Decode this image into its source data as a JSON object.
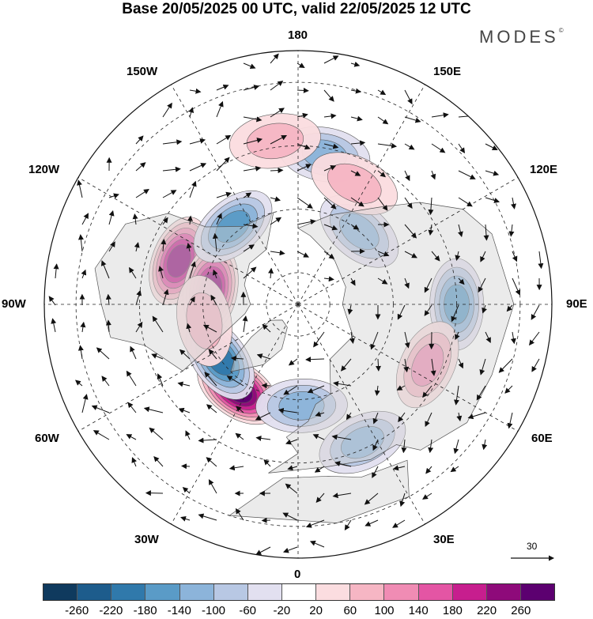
{
  "title": "Base 20/05/2025 00 UTC, valid 22/05/2025 12 UTC",
  "brand": "MODES",
  "brand_mark": "©",
  "longitude_labels": {
    "lon_180": "180",
    "lon_150e": "150E",
    "lon_120e": "120E",
    "lon_90e": "90E",
    "lon_60e": "60E",
    "lon_30e": "30E",
    "lon_0": "0",
    "lon_30w": "30W",
    "lon_60w": "60W",
    "lon_90w": "90W",
    "lon_120w": "120W",
    "lon_150w": "150W"
  },
  "reference_vector": "30",
  "colorbar": {
    "colors": [
      "#0f3a5e",
      "#1d5c8c",
      "#3079ab",
      "#5a9bc7",
      "#8cb4da",
      "#b8c8e4",
      "#e2e0f0",
      "#ffffff",
      "#fbdde0",
      "#f6b6c4",
      "#f08cb4",
      "#e455a4",
      "#c71e8e",
      "#8e0a7a",
      "#5c0070"
    ],
    "ticks": [
      "-260",
      "-220",
      "-180",
      "-140",
      "-100",
      "-60",
      "-20",
      "20",
      "60",
      "100",
      "140",
      "180",
      "220",
      "260"
    ]
  },
  "anomalies": [
    {
      "name": "pos-alaska-gulf",
      "lon": -110,
      "lat": 50,
      "value": 240
    },
    {
      "name": "pos-alaska-north",
      "lon": -100,
      "lat": 62,
      "value": 230
    },
    {
      "name": "pos-north-atlantic",
      "lon": -35,
      "lat": 57,
      "value": 250
    },
    {
      "name": "neg-labrador",
      "lon": -55,
      "lat": 60,
      "value": -180
    },
    {
      "name": "neg-east-pacific",
      "lon": -140,
      "lat": 58,
      "value": -150
    },
    {
      "name": "neg-bering",
      "lon": 170,
      "lat": 42,
      "value": -90
    },
    {
      "name": "pos-date-line",
      "lon": -172,
      "lat": 38,
      "value": 80
    },
    {
      "name": "neg-north-sea",
      "lon": 2,
      "lat": 58,
      "value": -110
    },
    {
      "name": "neg-mediterranean",
      "lon": 25,
      "lat": 42,
      "value": -120
    },
    {
      "name": "neg-central-asia",
      "lon": 90,
      "lat": 40,
      "value": -140
    },
    {
      "name": "pos-central-asia",
      "lon": 65,
      "lat": 45,
      "value": 90
    },
    {
      "name": "neg-east-siberia",
      "lon": 140,
      "lat": 60,
      "value": -110
    },
    {
      "name": "pos-north-pacific",
      "lon": 155,
      "lat": 48,
      "value": 70
    },
    {
      "name": "pos-hudson",
      "lon": -80,
      "lat": 60,
      "value": 50
    }
  ]
}
